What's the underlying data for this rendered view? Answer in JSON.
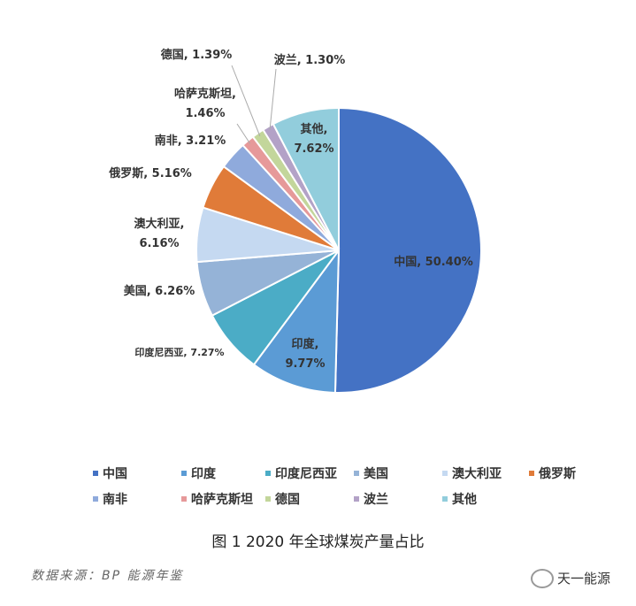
{
  "chart_data": {
    "type": "pie",
    "categories": [
      "中国",
      "印度",
      "印度尼西亚",
      "美国",
      "澳大利亚",
      "俄罗斯",
      "南非",
      "哈萨克斯坦",
      "德国",
      "波兰",
      "其他"
    ],
    "values": [
      50.4,
      9.77,
      7.27,
      6.26,
      6.16,
      5.16,
      3.21,
      1.46,
      1.39,
      1.3,
      7.62
    ],
    "value_labels": [
      "中国, 50.40%",
      "印度,\n9.77%",
      "印度尼西亚, 7.27%",
      "美国, 6.26%",
      "澳大利亚,\n6.16%",
      "俄罗斯, 5.16%",
      "南非, 3.21%",
      "哈萨克斯坦,\n1.46%",
      "德国, 1.39%",
      "波兰, 1.30%",
      "其他,\n7.62%"
    ],
    "colors": [
      "#4472c4",
      "#5b9bd5",
      "#4bacc6",
      "#95b3d7",
      "#c5d9f1",
      "#e07b39",
      "#8faadc",
      "#e6999a",
      "#c3d69b",
      "#b3a2c7",
      "#92cddc"
    ],
    "legend": "bottom"
  },
  "caption": "图 1 2020 年全球煤炭产量占比",
  "source": "数据来源：BP 能源年鉴",
  "watermark": "天一能源"
}
